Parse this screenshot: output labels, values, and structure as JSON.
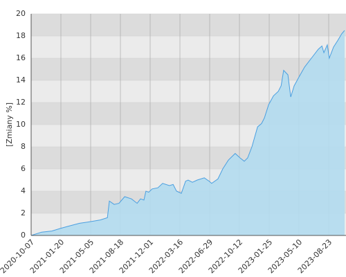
{
  "chart_data": {
    "type": "area",
    "y_label": "[Zmiany %]",
    "x": [
      "2020-10-07",
      "2020-11-13",
      "2020-12-19",
      "2021-01-20",
      "2021-02-18",
      "2021-03-27",
      "2021-05-05",
      "2021-06-08",
      "2021-07-03",
      "2021-07-10",
      "2021-07-27",
      "2021-08-13",
      "2021-09-02",
      "2021-09-26",
      "2021-10-16",
      "2021-10-28",
      "2021-11-09",
      "2021-11-16",
      "2021-11-26",
      "2021-12-08",
      "2021-12-28",
      "2022-01-14",
      "2022-02-07",
      "2022-02-20",
      "2022-03-04",
      "2022-03-21",
      "2022-04-05",
      "2022-04-14",
      "2022-04-29",
      "2022-05-16",
      "2022-06-10",
      "2022-06-27",
      "2022-07-06",
      "2022-07-28",
      "2022-08-14",
      "2022-09-03",
      "2022-09-27",
      "2022-10-14",
      "2022-10-29",
      "2022-11-10",
      "2022-11-25",
      "2022-12-15",
      "2022-12-29",
      "2023-01-08",
      "2023-01-23",
      "2023-02-09",
      "2023-02-26",
      "2023-03-08",
      "2023-03-17",
      "2023-04-01",
      "2023-04-11",
      "2023-04-23",
      "2023-05-10",
      "2023-05-30",
      "2023-06-23",
      "2023-07-17",
      "2023-07-30",
      "2023-08-06",
      "2023-08-18",
      "2023-08-25",
      "2023-09-09",
      "2023-09-24",
      "2023-10-08",
      "2023-10-18"
    ],
    "series": [
      {
        "color": "#4a9fe0",
        "fill": "#b3dcef",
        "values": [
          0,
          0.3,
          0.4,
          0.65,
          0.85,
          1.1,
          1.25,
          1.4,
          1.6,
          3.1,
          2.8,
          2.9,
          3.5,
          3.3,
          2.9,
          3.3,
          3.2,
          4.0,
          3.9,
          4.2,
          4.3,
          4.7,
          4.5,
          4.6,
          4.0,
          3.8,
          4.9,
          5.0,
          4.8,
          5.0,
          5.2,
          4.9,
          4.7,
          5.1,
          6.0,
          6.8,
          7.4,
          7.0,
          6.7,
          7.0,
          8.0,
          9.8,
          10.1,
          10.6,
          11.8,
          12.6,
          13.0,
          13.5,
          14.9,
          14.5,
          12.5,
          13.5,
          14.3,
          15.2,
          16.0,
          16.8,
          17.1,
          16.5,
          17.2,
          16.0,
          17.0,
          17.6,
          18.2,
          18.5
        ]
      }
    ],
    "xlim": [
      "2020-10-07",
      "2023-10-23"
    ],
    "xticks": [
      "2020-10-07",
      "2021-01-20",
      "2021-05-05",
      "2021-08-18",
      "2021-12-01",
      "2022-03-16",
      "2022-06-29",
      "2022-10-12",
      "2023-01-25",
      "2023-05-10",
      "2023-08-23"
    ],
    "ylim": [
      0,
      20
    ],
    "yticks": [
      0,
      2,
      4,
      6,
      8,
      10,
      12,
      14,
      16,
      18,
      20
    ],
    "grid": true
  }
}
